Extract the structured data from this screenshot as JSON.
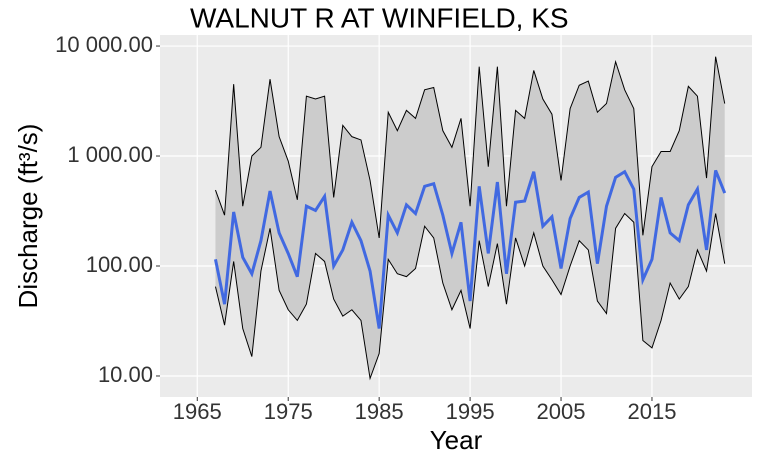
{
  "chart_data": {
    "type": "ribbon-line",
    "title": "WALNUT R AT WINFIELD, KS",
    "x_label": "Year",
    "y_label": "Discharge (ft³/s)",
    "log_y": true,
    "grid": true,
    "x": [
      1967,
      1968,
      1969,
      1970,
      1971,
      1972,
      1973,
      1974,
      1975,
      1976,
      1977,
      1978,
      1979,
      1980,
      1981,
      1982,
      1983,
      1984,
      1985,
      1986,
      1987,
      1988,
      1989,
      1990,
      1991,
      1992,
      1993,
      1994,
      1995,
      1996,
      1997,
      1998,
      1999,
      2000,
      2001,
      2002,
      2003,
      2004,
      2005,
      2006,
      2007,
      2008,
      2009,
      2010,
      2011,
      2012,
      2013,
      2014,
      2015,
      2016,
      2017,
      2018,
      2019,
      2020,
      2021,
      2022,
      2023
    ],
    "values": [
      115,
      45,
      310,
      120,
      85,
      170,
      480,
      200,
      130,
      80,
      350,
      320,
      430,
      100,
      140,
      250,
      170,
      90,
      27,
      290,
      200,
      360,
      300,
      530,
      560,
      290,
      130,
      250,
      48,
      530,
      130,
      580,
      85,
      380,
      390,
      720,
      230,
      280,
      95,
      270,
      420,
      470,
      105,
      350,
      640,
      720,
      500,
      75,
      115,
      420,
      200,
      170,
      360,
      500,
      140,
      740,
      460
    ],
    "ribbon_color": "#cccccc",
    "line_color": "#4169e1",
    "upper": [
      490,
      290,
      4500,
      350,
      1000,
      1200,
      5000,
      1500,
      900,
      400,
      3500,
      3300,
      3500,
      420,
      1900,
      1500,
      1400,
      600,
      180,
      2500,
      1700,
      2600,
      2200,
      4000,
      4200,
      1700,
      1200,
      2200,
      350,
      6500,
      800,
      6500,
      350,
      2600,
      2200,
      6000,
      3300,
      2400,
      600,
      2700,
      4400,
      4800,
      2500,
      3000,
      7200,
      4000,
      2700,
      190,
      800,
      1100,
      1100,
      1700,
      4300,
      3500,
      630,
      8000,
      3000
    ],
    "lower": [
      65,
      29,
      110,
      27,
      15,
      90,
      220,
      60,
      40,
      32,
      45,
      130,
      110,
      50,
      35,
      40,
      32,
      9.5,
      16,
      115,
      85,
      80,
      95,
      230,
      180,
      70,
      40,
      60,
      27,
      170,
      65,
      160,
      45,
      180,
      100,
      200,
      100,
      75,
      55,
      100,
      170,
      140,
      48,
      37,
      220,
      300,
      250,
      21,
      18,
      32,
      70,
      50,
      65,
      140,
      90,
      300,
      105
    ],
    "xlim": [
      1960.9,
      2026
    ],
    "xticks": [
      1965,
      1975,
      1985,
      1995,
      2005,
      2015
    ],
    "ylim": [
      6.44,
      12600
    ],
    "yticks": [
      {
        "value": 10,
        "label": "10.00"
      },
      {
        "value": 100,
        "label": "100.00"
      },
      {
        "value": 1000,
        "label": "1 000.00"
      },
      {
        "value": 10000,
        "label": "10 000.00"
      }
    ]
  }
}
